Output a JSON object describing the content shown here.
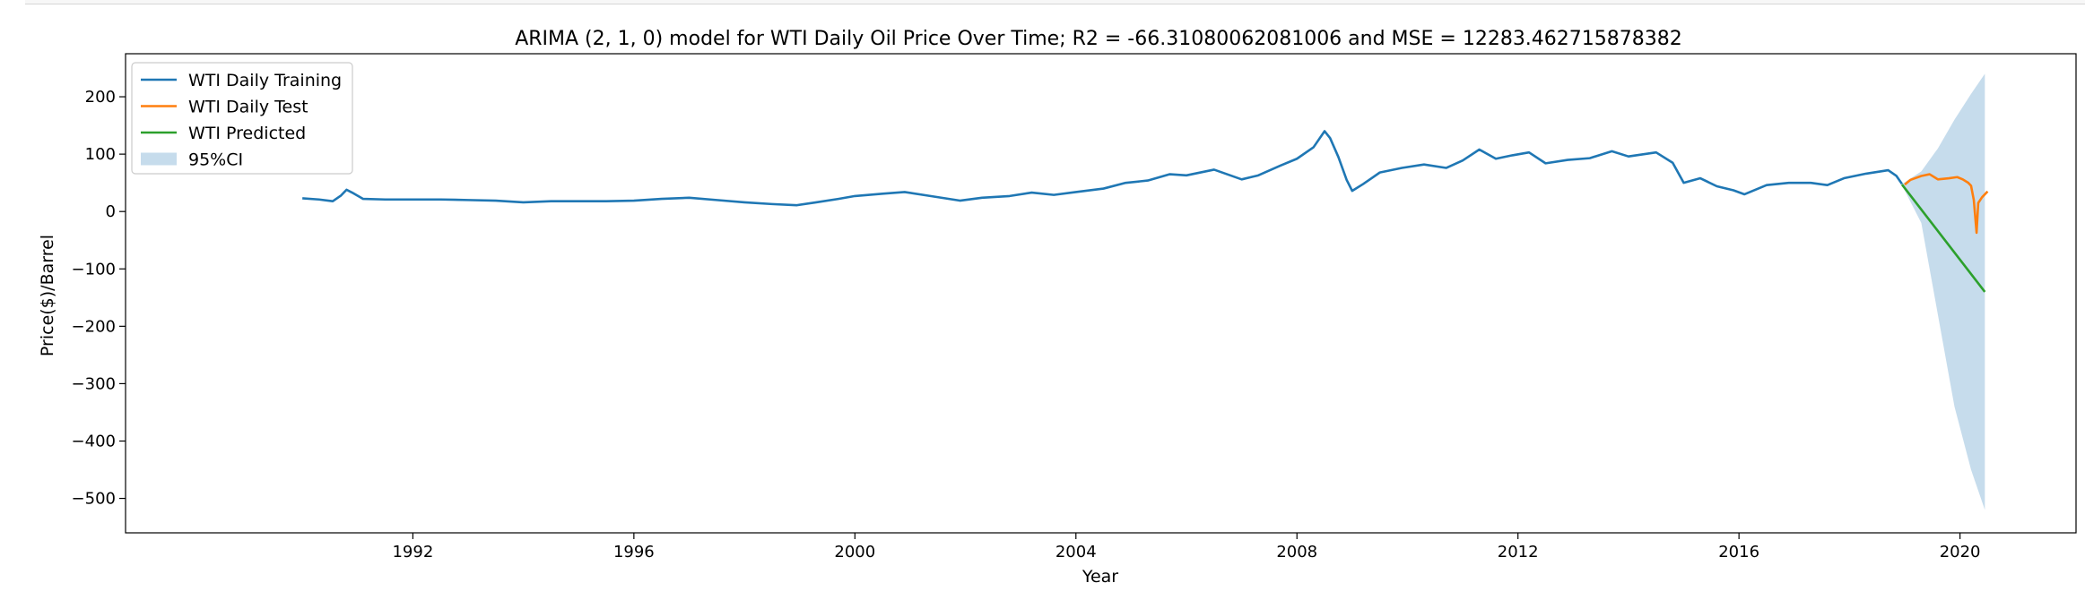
{
  "chart_data": {
    "type": "line",
    "title": "ARIMA (2, 1, 0) model for WTI Daily Oil Price Over Time; R2 = -66.31080062081006 and MSE = 12283.462715878382",
    "xlabel": "Year",
    "ylabel": "Price($)/Barrel",
    "xlim": [
      1986.8,
      2022.1
    ],
    "ylim": [
      -560,
      275
    ],
    "x_ticks": [
      1992,
      1996,
      2000,
      2004,
      2008,
      2012,
      2016,
      2020
    ],
    "y_ticks": [
      200,
      100,
      0,
      -100,
      -200,
      -300,
      -400,
      -500
    ],
    "grid": false,
    "legend_position": "top-left",
    "series": [
      {
        "name": "WTI Daily Training",
        "color": "#1f77b4",
        "points": [
          [
            1990.0,
            23
          ],
          [
            1990.3,
            21
          ],
          [
            1990.55,
            18
          ],
          [
            1990.7,
            28
          ],
          [
            1990.8,
            38
          ],
          [
            1990.9,
            33
          ],
          [
            1991.1,
            22
          ],
          [
            1991.5,
            21
          ],
          [
            1992.0,
            21
          ],
          [
            1992.5,
            21
          ],
          [
            1993.0,
            20
          ],
          [
            1993.5,
            19
          ],
          [
            1994.0,
            16
          ],
          [
            1994.5,
            18
          ],
          [
            1995.0,
            18
          ],
          [
            1995.5,
            18
          ],
          [
            1996.0,
            19
          ],
          [
            1996.5,
            22
          ],
          [
            1997.0,
            24
          ],
          [
            1997.5,
            20
          ],
          [
            1998.0,
            16
          ],
          [
            1998.5,
            13
          ],
          [
            1998.95,
            11
          ],
          [
            1999.3,
            16
          ],
          [
            1999.7,
            22
          ],
          [
            2000.0,
            27
          ],
          [
            2000.5,
            31
          ],
          [
            2000.9,
            34
          ],
          [
            2001.3,
            28
          ],
          [
            2001.9,
            19
          ],
          [
            2002.3,
            24
          ],
          [
            2002.8,
            27
          ],
          [
            2003.2,
            33
          ],
          [
            2003.6,
            29
          ],
          [
            2004.0,
            34
          ],
          [
            2004.5,
            40
          ],
          [
            2004.9,
            50
          ],
          [
            2005.3,
            54
          ],
          [
            2005.7,
            65
          ],
          [
            2006.0,
            63
          ],
          [
            2006.5,
            73
          ],
          [
            2007.0,
            56
          ],
          [
            2007.3,
            63
          ],
          [
            2007.7,
            80
          ],
          [
            2008.0,
            92
          ],
          [
            2008.3,
            112
          ],
          [
            2008.5,
            140
          ],
          [
            2008.6,
            128
          ],
          [
            2008.75,
            95
          ],
          [
            2008.9,
            55
          ],
          [
            2009.0,
            36
          ],
          [
            2009.2,
            48
          ],
          [
            2009.5,
            68
          ],
          [
            2009.9,
            76
          ],
          [
            2010.3,
            82
          ],
          [
            2010.7,
            76
          ],
          [
            2011.0,
            89
          ],
          [
            2011.3,
            108
          ],
          [
            2011.6,
            92
          ],
          [
            2011.9,
            98
          ],
          [
            2012.2,
            103
          ],
          [
            2012.5,
            84
          ],
          [
            2012.9,
            90
          ],
          [
            2013.3,
            93
          ],
          [
            2013.7,
            105
          ],
          [
            2014.0,
            96
          ],
          [
            2014.5,
            103
          ],
          [
            2014.8,
            85
          ],
          [
            2015.0,
            50
          ],
          [
            2015.3,
            58
          ],
          [
            2015.6,
            44
          ],
          [
            2015.9,
            37
          ],
          [
            2016.1,
            30
          ],
          [
            2016.5,
            46
          ],
          [
            2016.9,
            50
          ],
          [
            2017.3,
            50
          ],
          [
            2017.6,
            46
          ],
          [
            2017.9,
            58
          ],
          [
            2018.3,
            66
          ],
          [
            2018.7,
            72
          ],
          [
            2018.85,
            62
          ],
          [
            2018.95,
            48
          ]
        ]
      },
      {
        "name": "WTI Daily Test",
        "color": "#ff7f0e",
        "points": [
          [
            2019.0,
            47
          ],
          [
            2019.1,
            55
          ],
          [
            2019.3,
            62
          ],
          [
            2019.45,
            65
          ],
          [
            2019.6,
            56
          ],
          [
            2019.8,
            58
          ],
          [
            2019.95,
            60
          ],
          [
            2020.05,
            56
          ],
          [
            2020.15,
            50
          ],
          [
            2020.2,
            45
          ],
          [
            2020.25,
            20
          ],
          [
            2020.3,
            -37
          ],
          [
            2020.33,
            15
          ],
          [
            2020.4,
            25
          ],
          [
            2020.5,
            35
          ]
        ]
      },
      {
        "name": "WTI Predicted",
        "color": "#2ca02c",
        "points": [
          [
            2018.95,
            47
          ],
          [
            2020.45,
            -140
          ]
        ]
      },
      {
        "name": "95%CI",
        "color": "#c6dcec",
        "band_upper": [
          [
            2018.95,
            48
          ],
          [
            2019.3,
            70
          ],
          [
            2019.6,
            110
          ],
          [
            2019.9,
            160
          ],
          [
            2020.2,
            205
          ],
          [
            2020.45,
            240
          ]
        ],
        "band_lower": [
          [
            2018.95,
            46
          ],
          [
            2019.3,
            -20
          ],
          [
            2019.6,
            -180
          ],
          [
            2019.9,
            -340
          ],
          [
            2020.2,
            -450
          ],
          [
            2020.45,
            -520
          ]
        ]
      }
    ]
  }
}
